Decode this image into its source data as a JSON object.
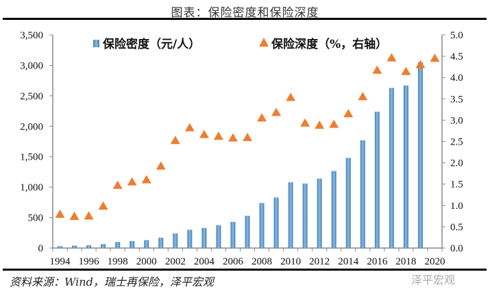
{
  "title": "图表：保险密度和保险深度",
  "source": "资料来源：Wind，瑞士再保险，泽平宏观",
  "watermark": "泽平宏观",
  "chart_data": {
    "type": "bar+scatter",
    "categories": [
      "1994",
      "1995",
      "1996",
      "1997",
      "1998",
      "1999",
      "2000",
      "2001",
      "2002",
      "2003",
      "2004",
      "2005",
      "2006",
      "2007",
      "2008",
      "2009",
      "2010",
      "2011",
      "2012",
      "2013",
      "2014",
      "2015",
      "2016",
      "2017",
      "2018",
      "2019",
      "2020"
    ],
    "x_tick_labels": [
      "1994",
      "1996",
      "1998",
      "2000",
      "2002",
      "2004",
      "2006",
      "2008",
      "2010",
      "2012",
      "2014",
      "2016",
      "2018",
      "2020"
    ],
    "series": [
      {
        "name": "保险密度（元/人）",
        "type": "bar",
        "axis": "left",
        "color": "#5b9bd5",
        "values": [
          30,
          40,
          45,
          65,
          100,
          115,
          130,
          170,
          240,
          300,
          330,
          375,
          430,
          530,
          740,
          830,
          1080,
          1060,
          1140,
          1265,
          1480,
          1770,
          2240,
          2630,
          2670,
          3050,
          null
        ]
      },
      {
        "name": "保险深度（%，右轴）",
        "type": "scatter",
        "marker": "triangle",
        "axis": "right",
        "color": "#ed7d31",
        "values": [
          0.79,
          0.74,
          0.75,
          0.98,
          1.47,
          1.55,
          1.6,
          1.92,
          2.52,
          2.82,
          2.66,
          2.62,
          2.58,
          2.59,
          3.05,
          3.18,
          3.53,
          2.93,
          2.88,
          2.9,
          3.15,
          3.55,
          4.17,
          4.46,
          4.14,
          4.3,
          4.45
        ]
      }
    ],
    "y_left": {
      "ylim": [
        0,
        3500
      ],
      "ticks": [
        "0",
        "500",
        "1,000",
        "1,500",
        "2,000",
        "2,500",
        "3,000",
        "3,500"
      ]
    },
    "y_right": {
      "ylim": [
        0,
        5.0
      ],
      "ticks": [
        "0.0",
        "0.5",
        "1.0",
        "1.5",
        "2.0",
        "2.5",
        "3.0",
        "3.5",
        "4.0",
        "4.5",
        "5.0"
      ]
    },
    "grid": false,
    "legend": "top"
  }
}
